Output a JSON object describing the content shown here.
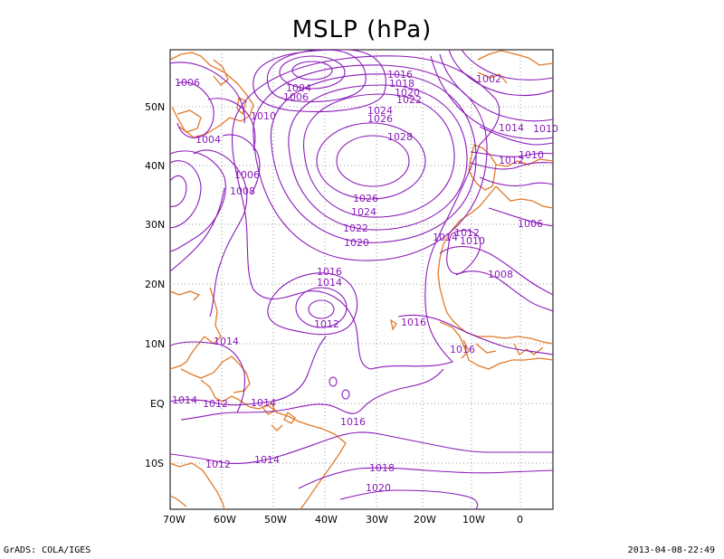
{
  "title": "MSLP (hPa)",
  "footer": {
    "left": "GrADS: COLA/IGES",
    "right": "2013-04-08-22:49"
  },
  "colors": {
    "contour": "#8a1ab8",
    "coast": "#e07a2a",
    "grid": "#999999",
    "frame": "#000000"
  },
  "axes": {
    "lon_labels": [
      "70W",
      "60W",
      "50W",
      "40W",
      "30W",
      "20W",
      "10W",
      "0"
    ],
    "lat_labels": [
      "50N",
      "40N",
      "30N",
      "20N",
      "10N",
      "EQ",
      "10S"
    ]
  },
  "contour_labels": [
    "1016",
    "1018",
    "1020",
    "1022",
    "1024",
    "1026",
    "1028",
    "1004",
    "1006",
    "1002",
    "1014",
    "1010",
    "1012",
    "1010",
    "1006",
    "1004",
    "1010",
    "1006",
    "1008",
    "1026",
    "1024",
    "1022",
    "1020",
    "1014",
    "1012",
    "1010",
    "1008",
    "1006",
    "1016",
    "1014",
    "1012",
    "1016",
    "1016",
    "1014",
    "1014",
    "1012",
    "1014",
    "1016",
    "1014",
    "1012",
    "1018",
    "1020"
  ]
}
